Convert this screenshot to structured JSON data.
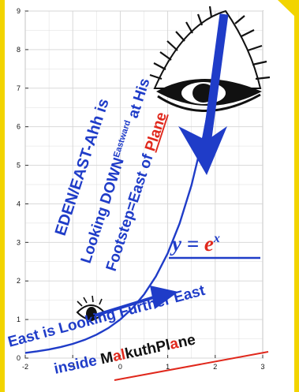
{
  "chart_data": {
    "type": "line",
    "xlim": [
      -2,
      3
    ],
    "ylim": [
      0,
      9
    ],
    "x_ticks": [
      "-2",
      "-1",
      "0",
      "1",
      "2",
      "3"
    ],
    "y_ticks": [
      "0",
      "1",
      "2",
      "3",
      "4",
      "5",
      "6",
      "7",
      "8",
      "9"
    ],
    "grid": true,
    "series": [
      {
        "x": [
          -2.0,
          -1.75,
          -1.5,
          -1.25,
          -1.0,
          -0.75,
          -0.5,
          -0.25,
          0.0,
          0.25,
          0.5,
          0.75,
          1.0,
          1.25,
          1.5,
          1.75,
          2.0,
          2.1,
          2.2
        ],
        "y": [
          0.135,
          0.174,
          0.223,
          0.287,
          0.368,
          0.472,
          0.607,
          0.779,
          1.0,
          1.284,
          1.649,
          2.117,
          2.718,
          3.49,
          4.482,
          5.755,
          7.389,
          8.166,
          9.0
        ],
        "color": "#1f3cc8"
      }
    ]
  },
  "annotations": {
    "eden_line1": "EDEN/EAST-Ahh is",
    "eden_line2_main": "Looking DOWN",
    "eden_line2_sup": "Eastward",
    "eden_line2_tail": " at His",
    "eden_line3_main": "Footstep=East of ",
    "eden_line3_red": "Plane",
    "equation_y": "y",
    "equation_eq": " = ",
    "equation_e": "e",
    "equation_x": "x",
    "east_line1": "East is Looking Further East",
    "east_line2_prefix": "inside ",
    "east_m": "M",
    "east_al": "al",
    "east_k": "k",
    "east_uth": "uth",
    "east_pl": "Pl",
    "east_a": "a",
    "east_ne": "ne"
  },
  "colors": {
    "curve": "#1f3cc8",
    "annotation_blue": "#1f3cc8",
    "annotation_red": "#e0281c",
    "grid": "#d4d4d4",
    "frame_accent": "#f2d400"
  },
  "icons": [
    "eye-icon",
    "small-eye-icon",
    "down-arrow-icon",
    "right-arrow-icon"
  ]
}
